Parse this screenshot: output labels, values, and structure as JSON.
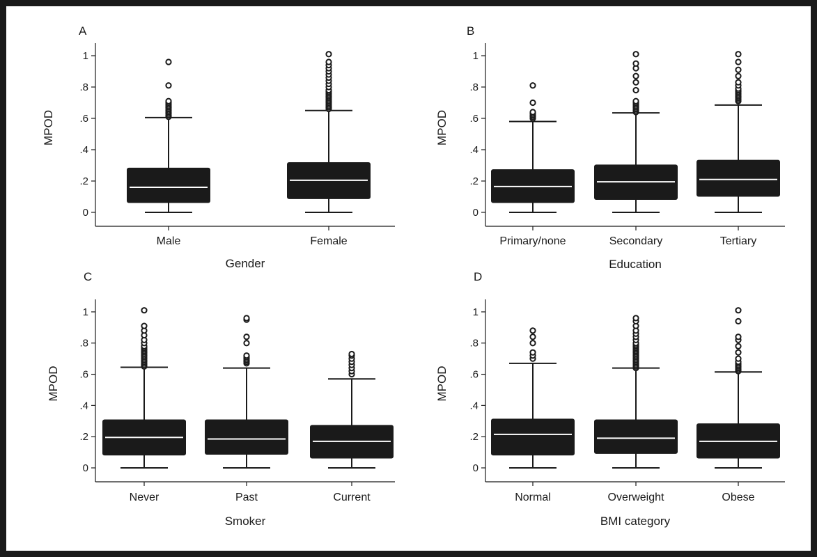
{
  "chart_data": [
    {
      "panel": "A",
      "type": "box",
      "xlabel": "Gender",
      "ylabel": "MPOD",
      "ylim": [
        0,
        1.08
      ],
      "yticks": [
        0,
        0.2,
        0.4,
        0.6,
        0.8,
        1
      ],
      "ytick_labels": [
        "0",
        ".2",
        ".4",
        ".6",
        ".8",
        "1"
      ],
      "categories": [
        "Male",
        "Female"
      ],
      "boxes": [
        {
          "min": 0,
          "q1": 0.06,
          "median": 0.16,
          "q3": 0.285,
          "max": 0.605,
          "outliers": [
            0.61,
            0.62,
            0.63,
            0.64,
            0.65,
            0.66,
            0.67,
            0.68,
            0.69,
            0.7,
            0.71,
            0.81,
            0.96
          ]
        },
        {
          "min": 0,
          "q1": 0.085,
          "median": 0.205,
          "q3": 0.32,
          "max": 0.65,
          "outliers": [
            0.66,
            0.67,
            0.68,
            0.69,
            0.7,
            0.71,
            0.72,
            0.73,
            0.74,
            0.75,
            0.76,
            0.77,
            0.78,
            0.8,
            0.82,
            0.84,
            0.86,
            0.88,
            0.9,
            0.92,
            0.94,
            0.96,
            1.01
          ]
        }
      ]
    },
    {
      "panel": "B",
      "type": "box",
      "xlabel": "Education",
      "ylabel": "MPOD",
      "ylim": [
        0,
        1.08
      ],
      "yticks": [
        0,
        0.2,
        0.4,
        0.6,
        0.8,
        1
      ],
      "ytick_labels": [
        "0",
        ".2",
        ".4",
        ".6",
        ".8",
        "1"
      ],
      "categories": [
        "Primary/none",
        "Secondary",
        "Tertiary"
      ],
      "boxes": [
        {
          "min": 0,
          "q1": 0.06,
          "median": 0.165,
          "q3": 0.275,
          "max": 0.58,
          "outliers": [
            0.6,
            0.61,
            0.62,
            0.63,
            0.64,
            0.7,
            0.81
          ]
        },
        {
          "min": 0,
          "q1": 0.08,
          "median": 0.195,
          "q3": 0.305,
          "max": 0.635,
          "outliers": [
            0.64,
            0.65,
            0.66,
            0.67,
            0.68,
            0.69,
            0.7,
            0.71,
            0.78,
            0.83,
            0.87,
            0.92,
            0.95,
            1.01
          ]
        },
        {
          "min": 0,
          "q1": 0.1,
          "median": 0.21,
          "q3": 0.335,
          "max": 0.685,
          "outliers": [
            0.71,
            0.72,
            0.73,
            0.74,
            0.75,
            0.76,
            0.77,
            0.78,
            0.79,
            0.81,
            0.83,
            0.87,
            0.91,
            0.96,
            1.01
          ]
        }
      ]
    },
    {
      "panel": "C",
      "type": "box",
      "xlabel": "Smoker",
      "ylabel": "MPOD",
      "ylim": [
        0,
        1.08
      ],
      "yticks": [
        0,
        0.2,
        0.4,
        0.6,
        0.8,
        1
      ],
      "ytick_labels": [
        "0",
        ".2",
        ".4",
        ".6",
        ".8",
        "1"
      ],
      "categories": [
        "Never",
        "Past",
        "Current"
      ],
      "boxes": [
        {
          "min": 0,
          "q1": 0.08,
          "median": 0.195,
          "q3": 0.31,
          "max": 0.645,
          "outliers": [
            0.65,
            0.66,
            0.67,
            0.68,
            0.69,
            0.7,
            0.71,
            0.72,
            0.73,
            0.74,
            0.75,
            0.76,
            0.77,
            0.78,
            0.8,
            0.82,
            0.85,
            0.88,
            0.91,
            1.01
          ]
        },
        {
          "min": 0,
          "q1": 0.085,
          "median": 0.185,
          "q3": 0.31,
          "max": 0.64,
          "outliers": [
            0.67,
            0.68,
            0.69,
            0.7,
            0.71,
            0.72,
            0.8,
            0.84,
            0.95,
            0.96
          ]
        },
        {
          "min": 0,
          "q1": 0.06,
          "median": 0.17,
          "q3": 0.275,
          "max": 0.57,
          "outliers": [
            0.6,
            0.62,
            0.64,
            0.66,
            0.68,
            0.7,
            0.72,
            0.73
          ]
        }
      ]
    },
    {
      "panel": "D",
      "type": "box",
      "xlabel": "BMI category",
      "ylabel": "MPOD",
      "ylim": [
        0,
        1.08
      ],
      "yticks": [
        0,
        0.2,
        0.4,
        0.6,
        0.8,
        1
      ],
      "ytick_labels": [
        "0",
        ".2",
        ".4",
        ".6",
        ".8",
        "1"
      ],
      "categories": [
        "Normal",
        "Overweight",
        "Obese"
      ],
      "boxes": [
        {
          "min": 0,
          "q1": 0.08,
          "median": 0.215,
          "q3": 0.315,
          "max": 0.67,
          "outliers": [
            0.7,
            0.72,
            0.74,
            0.8,
            0.84,
            0.88
          ]
        },
        {
          "min": 0,
          "q1": 0.09,
          "median": 0.19,
          "q3": 0.31,
          "max": 0.64,
          "outliers": [
            0.64,
            0.65,
            0.66,
            0.67,
            0.68,
            0.69,
            0.7,
            0.71,
            0.72,
            0.73,
            0.74,
            0.75,
            0.76,
            0.77,
            0.78,
            0.79,
            0.8,
            0.82,
            0.84,
            0.86,
            0.88,
            0.91,
            0.94,
            0.96
          ]
        },
        {
          "min": 0,
          "q1": 0.06,
          "median": 0.17,
          "q3": 0.285,
          "max": 0.615,
          "outliers": [
            0.62,
            0.63,
            0.64,
            0.65,
            0.66,
            0.67,
            0.68,
            0.7,
            0.74,
            0.78,
            0.82,
            0.84,
            0.94,
            1.01
          ]
        }
      ]
    }
  ]
}
